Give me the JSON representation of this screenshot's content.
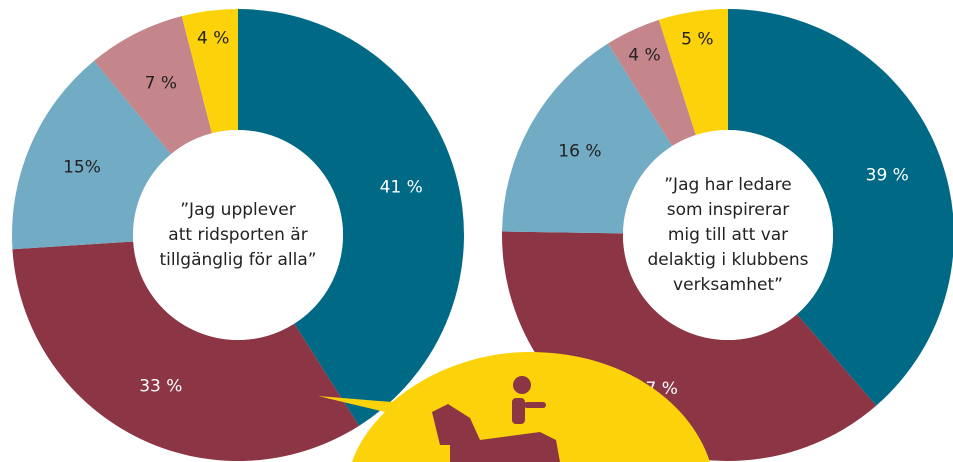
{
  "chart_data": [
    {
      "type": "donut",
      "center_text": [
        "”Jag upplever",
        "att ridsporten är",
        "tillgänglig för alla”"
      ],
      "values": [
        41,
        33,
        15,
        7,
        4
      ],
      "value_labels": [
        "41 %",
        "33 %",
        "15%",
        "7 %",
        "4 %"
      ],
      "colors": [
        "#006a86",
        "#8b3545",
        "#72abc4",
        "#c4868b",
        "#fcd20a"
      ]
    },
    {
      "type": "donut",
      "center_text": [
        "”Jag har ledare",
        "som inspirerar",
        "mig till att var",
        "delaktig i klubbens",
        "verksamhet”"
      ],
      "values": [
        39,
        37,
        16,
        4,
        5
      ],
      "value_labels": [
        "39 %",
        "37 %",
        "16 %",
        "4 %",
        "5 %"
      ],
      "colors": [
        "#006a86",
        "#8b3545",
        "#72abc4",
        "#c4868b",
        "#fcd20a"
      ]
    }
  ]
}
